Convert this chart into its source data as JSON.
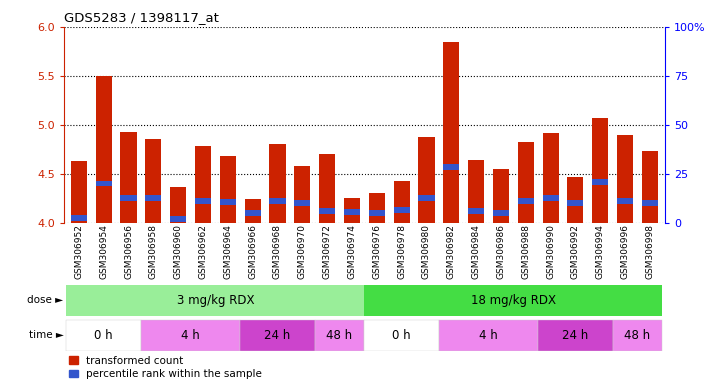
{
  "title": "GDS5283 / 1398117_at",
  "samples": [
    "GSM306952",
    "GSM306954",
    "GSM306956",
    "GSM306958",
    "GSM306960",
    "GSM306962",
    "GSM306964",
    "GSM306966",
    "GSM306968",
    "GSM306970",
    "GSM306972",
    "GSM306974",
    "GSM306976",
    "GSM306978",
    "GSM306980",
    "GSM306982",
    "GSM306984",
    "GSM306986",
    "GSM306988",
    "GSM306990",
    "GSM306992",
    "GSM306994",
    "GSM306996",
    "GSM306998"
  ],
  "transformed_count": [
    4.63,
    5.5,
    4.93,
    4.85,
    4.36,
    4.78,
    4.68,
    4.24,
    4.8,
    4.58,
    4.7,
    4.25,
    4.3,
    4.43,
    4.88,
    5.85,
    4.64,
    4.55,
    4.82,
    4.92,
    4.47,
    5.07,
    4.9,
    4.73
  ],
  "percentile_rank": [
    4.05,
    4.4,
    4.25,
    4.25,
    4.04,
    4.22,
    4.21,
    4.1,
    4.22,
    4.2,
    4.12,
    4.11,
    4.1,
    4.13,
    4.25,
    4.57,
    4.12,
    4.1,
    4.22,
    4.25,
    4.2,
    4.42,
    4.22,
    4.2
  ],
  "ymin": 4.0,
  "ymax": 6.0,
  "yticks": [
    4.0,
    4.5,
    5.0,
    5.5,
    6.0
  ],
  "right_yticks": [
    0,
    25,
    50,
    75,
    100
  ],
  "right_yticklabels": [
    "0",
    "25",
    "50",
    "75",
    "100%"
  ],
  "bar_color": "#cc2200",
  "blue_color": "#3355cc",
  "dose_row": [
    {
      "start": 0,
      "end": 11,
      "label": "3 mg/kg RDX",
      "color": "#99ee99"
    },
    {
      "start": 12,
      "end": 23,
      "label": "18 mg/kg RDX",
      "color": "#44dd44"
    }
  ],
  "time_row": [
    {
      "start": 0,
      "end": 2,
      "label": "0 h",
      "color": "#ffffff"
    },
    {
      "start": 3,
      "end": 6,
      "label": "4 h",
      "color": "#ee88ee"
    },
    {
      "start": 7,
      "end": 9,
      "label": "24 h",
      "color": "#cc44cc"
    },
    {
      "start": 10,
      "end": 11,
      "label": "48 h",
      "color": "#ee88ee"
    },
    {
      "start": 12,
      "end": 14,
      "label": "0 h",
      "color": "#ffffff"
    },
    {
      "start": 15,
      "end": 18,
      "label": "4 h",
      "color": "#ee88ee"
    },
    {
      "start": 19,
      "end": 21,
      "label": "24 h",
      "color": "#cc44cc"
    },
    {
      "start": 22,
      "end": 23,
      "label": "48 h",
      "color": "#ee88ee"
    }
  ]
}
